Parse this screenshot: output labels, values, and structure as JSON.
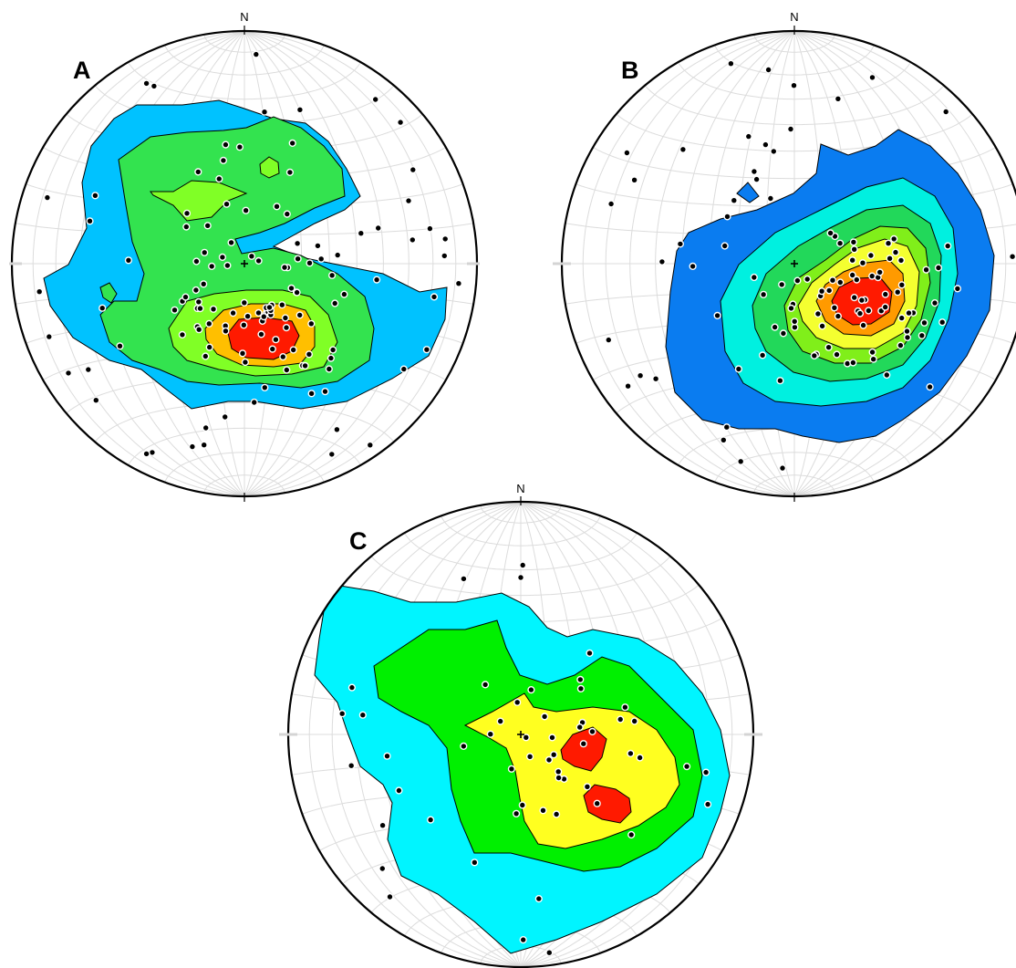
{
  "figure": {
    "panels": [
      {
        "id": "A",
        "label": "A",
        "north_label": "N",
        "contour_colors": [
          "#00c2ff",
          "#33e34f",
          "#80ff26",
          "#ffbf00",
          "#ff1a00"
        ],
        "poles_count": 130
      },
      {
        "id": "B",
        "label": "B",
        "north_label": "N",
        "contour_colors": [
          "#0a7cf0",
          "#00f0e0",
          "#22d85a",
          "#80ef1a",
          "#f4ff30",
          "#ff9a00",
          "#ff1a00"
        ],
        "poles_count": 110
      },
      {
        "id": "C",
        "label": "C",
        "north_label": "N",
        "contour_colors": [
          "#00f5ff",
          "#00f000",
          "#ffff20",
          "#ff1a00"
        ],
        "poles_count": 55
      }
    ],
    "colors": {
      "net_grid": "#dcdcdc",
      "rim": "#000000",
      "pole_fill": "#000000",
      "pole_outline": "#ffffff"
    }
  }
}
